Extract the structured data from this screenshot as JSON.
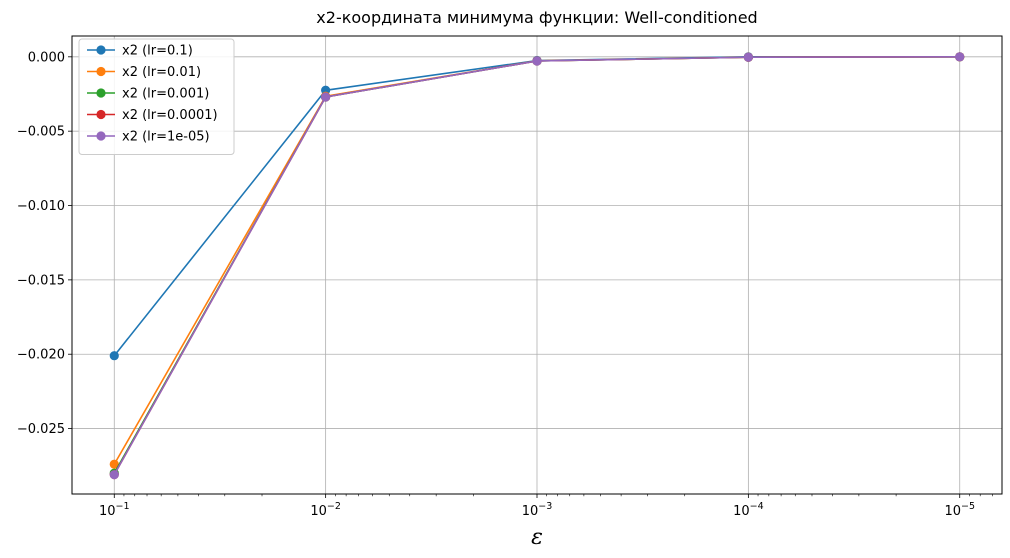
{
  "chart_data": {
    "type": "line",
    "title": "x2-координата минимума функции: Well-conditioned",
    "xlabel": "ε",
    "ylabel": "",
    "xscale": "log",
    "x_reversed": true,
    "x": [
      0.1,
      0.01,
      0.001,
      0.0001,
      1e-05
    ],
    "x_tick_labels": [
      {
        "base": "10",
        "exp": "−1"
      },
      {
        "base": "10",
        "exp": "−2"
      },
      {
        "base": "10",
        "exp": "−3"
      },
      {
        "base": "10",
        "exp": "−4"
      },
      {
        "base": "10",
        "exp": "−5"
      }
    ],
    "yticks": [
      0.0,
      -0.005,
      -0.01,
      -0.015,
      -0.02,
      -0.025
    ],
    "y_tick_labels": [
      "0.000",
      "−0.005",
      "−0.010",
      "−0.015",
      "−0.020",
      "−0.025"
    ],
    "ylim": [
      -0.0294,
      0.0014
    ],
    "grid": true,
    "legend_position": "top-left",
    "marker": "circle",
    "series": [
      {
        "name": "x2 (lr=0.1)",
        "color": "#1f77b4",
        "values": [
          -0.0201,
          -0.00225,
          -0.00025,
          0.0,
          0.0
        ]
      },
      {
        "name": "x2 (lr=0.01)",
        "color": "#ff7f0e",
        "values": [
          -0.0274,
          -0.00265,
          -0.00027,
          -3e-05,
          0.0
        ]
      },
      {
        "name": "x2 (lr=0.001)",
        "color": "#2ca02c",
        "values": [
          -0.028,
          -0.0027,
          -0.00028,
          -3e-05,
          0.0
        ]
      },
      {
        "name": "x2 (lr=0.0001)",
        "color": "#d62728",
        "values": [
          -0.0281,
          -0.0027,
          -0.00028,
          -3e-05,
          0.0
        ]
      },
      {
        "name": "x2 (lr=1e-05)",
        "color": "#9467bd",
        "values": [
          -0.0281,
          -0.0027,
          -0.00028,
          -3e-05,
          0.0
        ]
      }
    ]
  }
}
